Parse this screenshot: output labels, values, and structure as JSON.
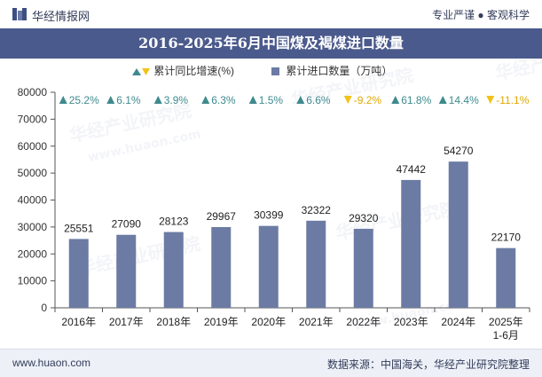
{
  "header": {
    "brand": "华经情报网",
    "tagline": "专业严谨 ● 客观科学"
  },
  "chart_data": {
    "type": "bar",
    "title": "2016-2025年6月中国煤及褐煤进口数量",
    "categories": [
      "2016年",
      "2017年",
      "2018年",
      "2019年",
      "2020年",
      "2021年",
      "2022年",
      "2023年",
      "2024年",
      "2025年\n1-6月"
    ],
    "series": [
      {
        "name": "累计进口数量（万吨）",
        "values": [
          25551,
          27090,
          28123,
          29967,
          30399,
          32322,
          29320,
          47442,
          54270,
          22170
        ]
      }
    ],
    "growth": {
      "name": "累计同比增速(%)",
      "labels": [
        "25.2%",
        "6.1%",
        "3.9%",
        "6.3%",
        "1.5%",
        "6.6%",
        "-9.2%",
        "61.8%",
        "14.4%",
        "-11.1%"
      ],
      "values": [
        25.2,
        6.1,
        3.9,
        6.3,
        1.5,
        6.6,
        -9.2,
        61.8,
        14.4,
        -11.1
      ]
    },
    "ylim": [
      0,
      80000
    ],
    "yticks": [
      0,
      10000,
      20000,
      30000,
      40000,
      50000,
      60000,
      70000,
      80000
    ],
    "xlabel": "",
    "ylabel": "",
    "legend": "top-center"
  },
  "colors": {
    "bar": "#6b7ba3",
    "up_arrow": "#3f8a8e",
    "down_arrow": "#f2c21a",
    "up_text": "#3f8a8e",
    "down_text": "#e0a800",
    "title_band": "#4a5a8c"
  },
  "watermark": {
    "cn": "华经产业研究院",
    "url": "www.huaon.com"
  },
  "footer": {
    "url": "www.huaon.com",
    "source": "数据来源：中国海关，华经产业研究院整理"
  }
}
